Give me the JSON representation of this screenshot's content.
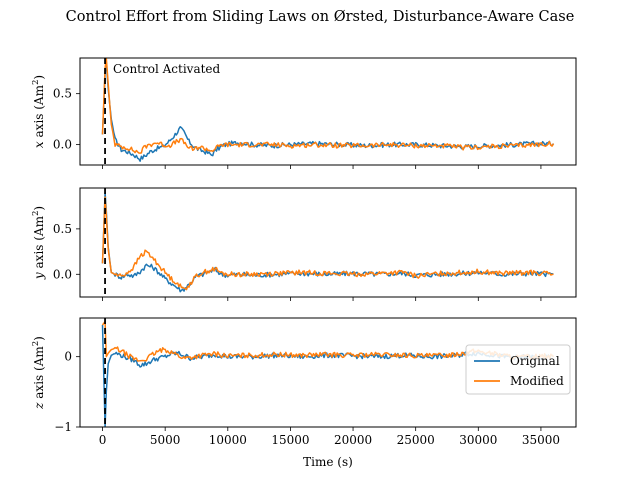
{
  "title": "Control Effort from Sliding Laws on Ørsted, Disturbance-Aware Case",
  "colors": {
    "original": "#1f77b4",
    "modified": "#ff7f0e",
    "activation": "#000000"
  },
  "chart_data": {
    "type": "line",
    "title": "Control Effort from Sliding Laws on Ørsted, Disturbance-Aware Case",
    "xlabel": "Time (s)",
    "x_ticks": [
      0,
      5000,
      10000,
      15000,
      20000,
      25000,
      30000,
      35000
    ],
    "x_tick_labels": [
      "0",
      "5000",
      "10000",
      "15000",
      "20000",
      "25000",
      "30000",
      "35000"
    ],
    "xlim": [
      -1800,
      37800
    ],
    "activation_time": 200,
    "annotation": "Control Activated",
    "legend": {
      "placement": "lower-right",
      "entries": [
        "Original",
        "Modified"
      ]
    },
    "panels": [
      {
        "ylabel_prefix": "x",
        "ylabel_rest": " axis (Am",
        "ylabel_sup": "2",
        "ylabel_close": ")",
        "ylim": [
          -0.2,
          0.85
        ],
        "y_ticks": [
          0.0,
          0.5
        ],
        "y_tick_labels": [
          "0.0",
          "0.5"
        ],
        "series": [
          {
            "name": "Original",
            "x": [
              0,
              200,
              300,
              450,
              700,
              1000,
              1500,
              2000,
              2500,
              3000,
              3400,
              3800,
              4300,
              4800,
              5300,
              5800,
              6200,
              6500,
              6900,
              7300,
              7700,
              8200,
              8700,
              9100,
              9600,
              10200,
              11000,
              12000,
              13500,
              15000,
              17000,
              19000,
              21000,
              23000,
              25000,
              27000,
              29000,
              31000,
              33000,
              34500,
              36000
            ],
            "values": [
              0.1,
              0.7,
              0.8,
              0.55,
              0.25,
              0.05,
              -0.05,
              -0.07,
              -0.1,
              -0.14,
              -0.11,
              -0.07,
              -0.04,
              -0.02,
              0.03,
              0.1,
              0.16,
              0.12,
              0.03,
              -0.02,
              -0.05,
              -0.07,
              -0.1,
              -0.05,
              -0.01,
              0.01,
              0.02,
              0.0,
              -0.01,
              0.0,
              0.01,
              0.0,
              -0.01,
              0.0,
              0.0,
              -0.01,
              -0.02,
              -0.01,
              0.0,
              0.01,
              0.01
            ]
          },
          {
            "name": "Modified",
            "x": [
              0,
              200,
              300,
              450,
              700,
              1000,
              1500,
              2000,
              2500,
              3000,
              3400,
              3800,
              4300,
              4800,
              5300,
              5800,
              6200,
              6500,
              6900,
              7300,
              7700,
              8200,
              8700,
              9100,
              9600,
              10200,
              11000,
              12000,
              13500,
              15000,
              17000,
              19000,
              21000,
              23000,
              25000,
              27000,
              29000,
              31000,
              33000,
              34500,
              36000
            ],
            "values": [
              0.1,
              0.75,
              0.85,
              0.6,
              0.2,
              0.0,
              -0.02,
              -0.03,
              -0.06,
              -0.08,
              -0.02,
              0.0,
              0.02,
              0.0,
              -0.01,
              0.02,
              0.05,
              0.02,
              -0.03,
              -0.05,
              -0.02,
              -0.04,
              -0.06,
              -0.03,
              0.0,
              0.0,
              0.0,
              0.0,
              0.0,
              -0.01,
              0.0,
              -0.01,
              -0.01,
              0.0,
              -0.01,
              -0.01,
              -0.03,
              -0.02,
              -0.01,
              0.0,
              0.01
            ]
          }
        ]
      },
      {
        "ylabel_prefix": "y",
        "ylabel_rest": " axis (Am",
        "ylabel_sup": "2",
        "ylabel_close": ")",
        "ylim": [
          -0.25,
          0.95
        ],
        "y_ticks": [
          0.0,
          0.5
        ],
        "y_tick_labels": [
          "0.0",
          "0.5"
        ],
        "series": [
          {
            "name": "Original",
            "x": [
              0,
              200,
              300,
              450,
              700,
              1000,
              1500,
              2000,
              2500,
              3000,
              3500,
              4000,
              4500,
              5000,
              5500,
              6000,
              6300,
              6600,
              7000,
              7500,
              8000,
              8500,
              9000,
              9500,
              10000,
              11000,
              12000,
              14000,
              16000,
              18000,
              20000,
              22000,
              24000,
              25000,
              27000,
              29000,
              30000,
              32000,
              34000,
              36000
            ],
            "values": [
              0.12,
              0.9,
              0.7,
              0.3,
              0.02,
              0.0,
              -0.03,
              0.0,
              -0.02,
              0.03,
              0.1,
              0.08,
              0.02,
              -0.05,
              -0.1,
              -0.15,
              -0.18,
              -0.15,
              -0.1,
              -0.02,
              0.0,
              0.03,
              0.05,
              0.0,
              -0.01,
              0.0,
              -0.01,
              0.0,
              0.01,
              0.0,
              0.01,
              0.0,
              0.01,
              -0.01,
              0.0,
              0.01,
              0.02,
              0.0,
              0.01,
              0.0
            ]
          },
          {
            "name": "Modified",
            "x": [
              0,
              200,
              300,
              450,
              700,
              1000,
              1500,
              2000,
              2500,
              3000,
              3500,
              4000,
              4500,
              5000,
              5500,
              6000,
              6300,
              6600,
              7000,
              7500,
              8000,
              8500,
              9000,
              9500,
              10000,
              11000,
              12000,
              14000,
              16000,
              18000,
              20000,
              22000,
              24000,
              25000,
              27000,
              29000,
              30000,
              32000,
              34000,
              36000
            ],
            "values": [
              0.12,
              0.85,
              0.65,
              0.28,
              0.02,
              0.0,
              -0.02,
              0.02,
              0.08,
              0.2,
              0.25,
              0.18,
              0.1,
              0.02,
              -0.05,
              -0.1,
              -0.15,
              -0.16,
              -0.1,
              -0.02,
              0.02,
              0.04,
              0.06,
              0.01,
              0.0,
              0.0,
              0.0,
              0.01,
              0.02,
              0.01,
              0.0,
              0.01,
              0.02,
              -0.02,
              0.01,
              0.02,
              0.03,
              0.01,
              0.02,
              0.0
            ]
          }
        ]
      },
      {
        "ylabel_prefix": "z",
        "ylabel_rest": " axis (Am",
        "ylabel_sup": "2",
        "ylabel_close": ")",
        "ylim": [
          -1.0,
          0.55
        ],
        "y_ticks": [
          -1,
          0
        ],
        "y_tick_labels": [
          "−1",
          "0"
        ],
        "series": [
          {
            "name": "Original",
            "x": [
              0,
              200,
              300,
              450,
              700,
              1000,
              1500,
              2000,
              2500,
              3000,
              3500,
              4000,
              4500,
              5000,
              5500,
              6000,
              6500,
              7000,
              8000,
              9000,
              10000,
              12000,
              14000,
              16000,
              18000,
              20000,
              22000,
              24000,
              26000,
              28000,
              29000,
              30000,
              31000,
              32000,
              33000,
              34000,
              35000,
              36000
            ],
            "values": [
              0.45,
              -1.0,
              -0.5,
              -0.1,
              0.02,
              0.05,
              0.02,
              -0.02,
              -0.05,
              -0.12,
              -0.1,
              -0.05,
              -0.02,
              0.0,
              0.04,
              0.05,
              0.02,
              -0.02,
              0.0,
              0.03,
              0.0,
              0.0,
              0.02,
              0.0,
              0.02,
              0.01,
              0.0,
              0.02,
              0.0,
              0.01,
              0.04,
              0.05,
              0.03,
              0.0,
              -0.01,
              0.0,
              -0.02,
              0.0
            ]
          },
          {
            "name": "Modified",
            "x": [
              0,
              200,
              300,
              450,
              700,
              1000,
              1500,
              2000,
              2500,
              3000,
              3500,
              4000,
              4500,
              5000,
              5500,
              6000,
              6500,
              7000,
              8000,
              9000,
              10000,
              12000,
              14000,
              16000,
              18000,
              20000,
              22000,
              24000,
              26000,
              28000,
              29000,
              30000,
              31000,
              32000,
              33000,
              34000,
              35000,
              36000
            ],
            "values": [
              0.45,
              0.5,
              0.0,
              0.05,
              0.1,
              0.12,
              0.08,
              0.02,
              -0.03,
              -0.06,
              -0.03,
              0.03,
              0.08,
              0.1,
              0.07,
              0.02,
              -0.02,
              -0.01,
              0.02,
              0.04,
              0.01,
              0.02,
              0.03,
              0.02,
              0.03,
              0.02,
              0.03,
              0.02,
              0.01,
              0.03,
              0.06,
              0.08,
              0.05,
              0.02,
              -0.01,
              0.0,
              0.01,
              0.0
            ]
          }
        ]
      }
    ]
  }
}
